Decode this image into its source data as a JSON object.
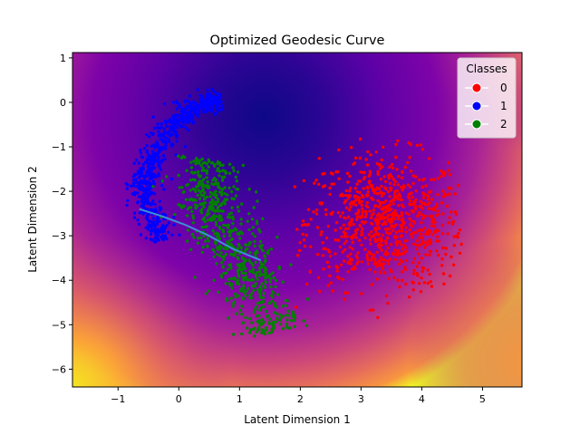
{
  "chart_data": {
    "type": "scatter",
    "title": "Optimized Geodesic Curve",
    "xlabel": "Latent Dimension 1",
    "ylabel": "Latent Dimension 2",
    "xlim": [
      -1.75,
      5.65
    ],
    "ylim": [
      -6.4,
      1.12
    ],
    "xticks": [
      -1,
      0,
      1,
      2,
      3,
      4,
      5
    ],
    "yticks": [
      1,
      0,
      -1,
      -2,
      -3,
      -4,
      -5,
      -6
    ],
    "xtick_labels": [
      "−1",
      "0",
      "1",
      "2",
      "3",
      "4",
      "5"
    ],
    "ytick_labels": [
      "1",
      "0",
      "−1",
      "−2",
      "−3",
      "−4",
      "−5",
      "−6"
    ],
    "grid": false,
    "legend": {
      "title": "Classes",
      "placement": "top-right",
      "entries": [
        {
          "label": "0",
          "color": "#ff0000"
        },
        {
          "label": "1",
          "color": "#0000ff"
        },
        {
          "label": "2",
          "color": "#008000"
        }
      ]
    },
    "background": {
      "type": "heatmap",
      "colormap": "plasma",
      "low_region_center": [
        1.5,
        -1.0
      ],
      "high_regions": [
        "bottom-left",
        "bottom-right",
        "top-right"
      ]
    },
    "series": [
      {
        "name": "0",
        "color": "#ff0000",
        "approx_count": 800,
        "cluster": {
          "center": [
            3.4,
            -2.7
          ],
          "spread": [
            0.65,
            0.75
          ],
          "x_range": [
            1.9,
            4.7
          ],
          "y_range": [
            -4.9,
            -0.8
          ]
        }
      },
      {
        "name": "1",
        "color": "#0000ff",
        "approx_count": 700,
        "arc": [
          [
            0.7,
            0.05
          ],
          [
            0.35,
            0.0
          ],
          [
            0.0,
            -0.35
          ],
          [
            -0.3,
            -0.9
          ],
          [
            -0.5,
            -1.5
          ],
          [
            -0.6,
            -2.0
          ],
          [
            -0.45,
            -2.6
          ],
          [
            -0.25,
            -3.1
          ]
        ]
      },
      {
        "name": "2",
        "color": "#008000",
        "approx_count": 700,
        "band": [
          [
            0.55,
            -1.3
          ],
          [
            0.35,
            -2.1
          ],
          [
            0.7,
            -2.8
          ],
          [
            1.0,
            -3.5
          ],
          [
            1.3,
            -4.3
          ],
          [
            1.5,
            -5.2
          ]
        ]
      }
    ],
    "geodesic_curve": {
      "color": "#3d8fd6",
      "x": [
        -0.65,
        -0.3,
        0.1,
        0.5,
        0.9,
        1.35
      ],
      "y": [
        -2.4,
        -2.55,
        -2.75,
        -3.0,
        -3.3,
        -3.55
      ]
    }
  }
}
